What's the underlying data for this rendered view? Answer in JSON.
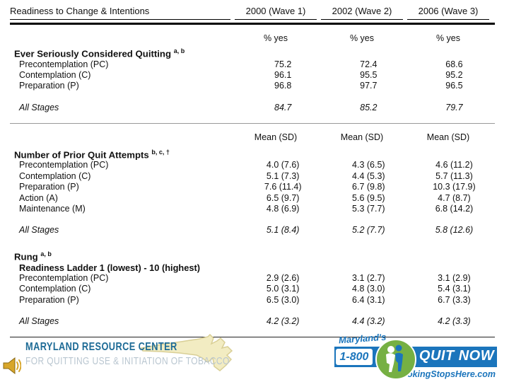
{
  "table": {
    "title": "Readiness to Change & Intentions",
    "wave_headers": [
      "2000 (Wave 1)",
      "2002 (Wave 2)",
      "2006 (Wave 3)"
    ],
    "sections": [
      {
        "measure_header": "% yes",
        "name": "Ever Seriously Considered Quitting",
        "superscript": "a, b",
        "rows": [
          {
            "label": "Precontemplation (PC)",
            "values": [
              "75.2",
              "72.4",
              "68.6"
            ]
          },
          {
            "label": "Contemplation (C)",
            "values": [
              "96.1",
              "95.5",
              "95.2"
            ]
          },
          {
            "label": "Preparation (P)",
            "values": [
              "96.8",
              "97.7",
              "96.5"
            ]
          }
        ],
        "summary": {
          "label": "All Stages",
          "values": [
            "84.7",
            "85.2",
            "79.7"
          ]
        }
      },
      {
        "measure_header": "Mean (SD)",
        "name": "Number of Prior Quit Attempts",
        "superscript": "b, c, †",
        "rows": [
          {
            "label": "Precontemplation (PC)",
            "values": [
              "4.0 (7.6)",
              "4.3 (6.5)",
              "4.6 (11.2)"
            ]
          },
          {
            "label": "Contemplation (C)",
            "values": [
              "5.1 (7.3)",
              "4.4 (5.3)",
              "5.7 (11.3)"
            ]
          },
          {
            "label": "Preparation (P)",
            "values": [
              "7.6 (11.4)",
              "6.7 (9.8)",
              "10.3 (17.9)"
            ]
          },
          {
            "label": "Action (A)",
            "values": [
              "6.5 (9.7)",
              "5.6 (9.5)",
              "4.7 (8.7)"
            ]
          },
          {
            "label": "Maintenance (M)",
            "values": [
              "4.8 (6.9)",
              "5.3 (7.7)",
              "6.8 (14.2)"
            ]
          }
        ],
        "summary": {
          "label": "All Stages",
          "values": [
            "5.1 (8.4)",
            "5.2 (7.7)",
            "5.8 (12.6)"
          ]
        }
      },
      {
        "name": "Rung",
        "superscript": "a, b",
        "subheader": "Readiness Ladder 1 (lowest) - 10 (highest)",
        "rows": [
          {
            "label": "Precontemplation (PC)",
            "values": [
              "2.9 (2.6)",
              "3.1 (2.7)",
              "3.1 (2.9)"
            ]
          },
          {
            "label": "Contemplation (C)",
            "values": [
              "5.0 (3.1)",
              "4.8 (3.0)",
              "5.4 (3.1)"
            ]
          },
          {
            "label": "Preparation (P)",
            "values": [
              "6.5 (3.0)",
              "6.4 (3.1)",
              "6.7 (3.3)"
            ]
          }
        ],
        "summary": {
          "label": "All Stages",
          "values": [
            "4.2 (3.2)",
            "4.4 (3.2)",
            "4.2 (3.3)"
          ]
        }
      }
    ]
  },
  "footer": {
    "brand_line1": "MARYLAND RESOURCE CENTER",
    "brand_line2": "FOR QUITTING USE & INITIATION OF TOBACCO",
    "quitline": {
      "tagline": "Maryland's",
      "number": "1-800",
      "label": "QUIT NOW",
      "url": "SmokingStopsHere.com"
    },
    "icons": {
      "speaker": "speaker-audio-icon",
      "people": "two-people-icon",
      "map": "maryland-state-map"
    }
  },
  "colors": {
    "banner_blue": "#1b75bc",
    "logo_green": "#76b043",
    "brand_blue": "#1e6b96",
    "brand_gray": "#b9c6d0",
    "map_yellow": "#f2ecc2",
    "map_outline": "#d9cf96",
    "speaker_gold": "#d8a62a",
    "speaker_dark": "#8a6914"
  }
}
